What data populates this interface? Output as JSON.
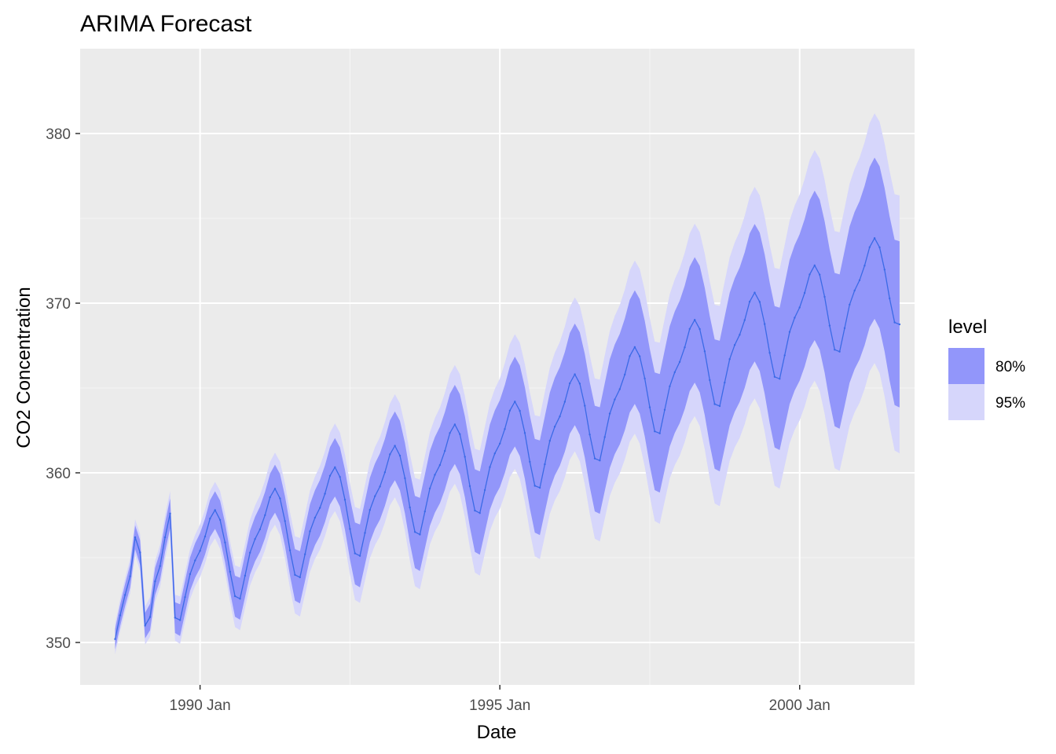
{
  "chart_data": {
    "type": "area",
    "title": "ARIMA Forecast",
    "xlabel": "Date",
    "ylabel": "CO2 Concentration",
    "x_start": "1988 Aug",
    "x_end": "2001 Sep",
    "x_unit": "month",
    "xlim": [
      "1988 Jan",
      "2001 Dec"
    ],
    "ylim": [
      347.5,
      385
    ],
    "x_ticks": [
      {
        "date": "1990 Jan",
        "label": "1990 Jan"
      },
      {
        "date": "1995 Jan",
        "label": "1995 Jan"
      },
      {
        "date": "2000 Jan",
        "label": "2000 Jan"
      }
    ],
    "y_ticks": [
      350,
      360,
      370,
      380
    ],
    "grid": true,
    "legend": {
      "title": "level",
      "position": "right",
      "items": [
        {
          "label": "80%",
          "color": "#9296fa"
        },
        {
          "label": "95%",
          "color": "#d6d6fb"
        }
      ]
    },
    "seasonal_offsets": [
      0.22,
      0.95,
      1.9,
      2.3,
      1.62,
      0.18,
      -1.65,
      -3.2,
      -3.45,
      -2.2,
      -0.95,
      -0.25
    ],
    "trend": [
      {
        "date": "1988 Aug",
        "value": 353.4
      },
      {
        "date": "1995 Jan",
        "value": 361.5
      },
      {
        "date": "2001 Sep",
        "value": 372.2
      }
    ],
    "forecast": [
      350.2,
      351.6,
      352.8,
      353.9,
      356.2,
      355.3,
      351.0,
      351.5,
      353.6,
      354.5,
      356.2,
      357.6
    ],
    "band80_halfwidth": [
      0.6,
      2.6,
      4.9
    ],
    "band95_halfwidth": [
      0.9,
      3.9,
      7.6
    ],
    "colors": {
      "line": "#3b6ae6",
      "band80": "#9296fa",
      "band95": "#d6d6fb",
      "panel": "#ebebeb",
      "grid_major": "#ffffff",
      "axis_text": "#4d4d4d",
      "tick": "#333333"
    }
  }
}
